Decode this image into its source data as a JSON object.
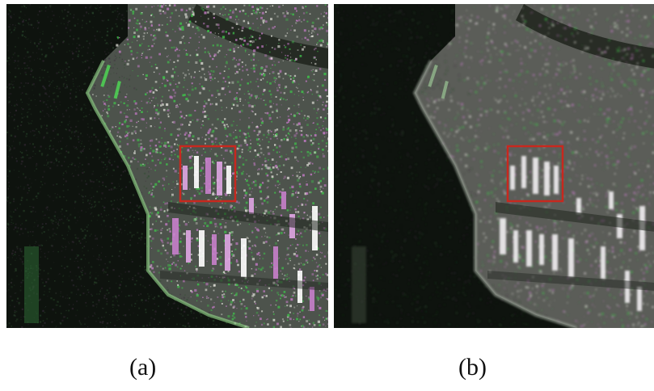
{
  "panels": [
    {
      "id": "a",
      "caption": "(a)"
    },
    {
      "id": "b",
      "caption": "(b)"
    }
  ],
  "colors": {
    "background": "#ffffff",
    "speckle_green": "#3fbf4a",
    "speckle_magenta": "#c27ac4",
    "highlight_box": "#c8281e",
    "water_dark": "#0e130e"
  }
}
